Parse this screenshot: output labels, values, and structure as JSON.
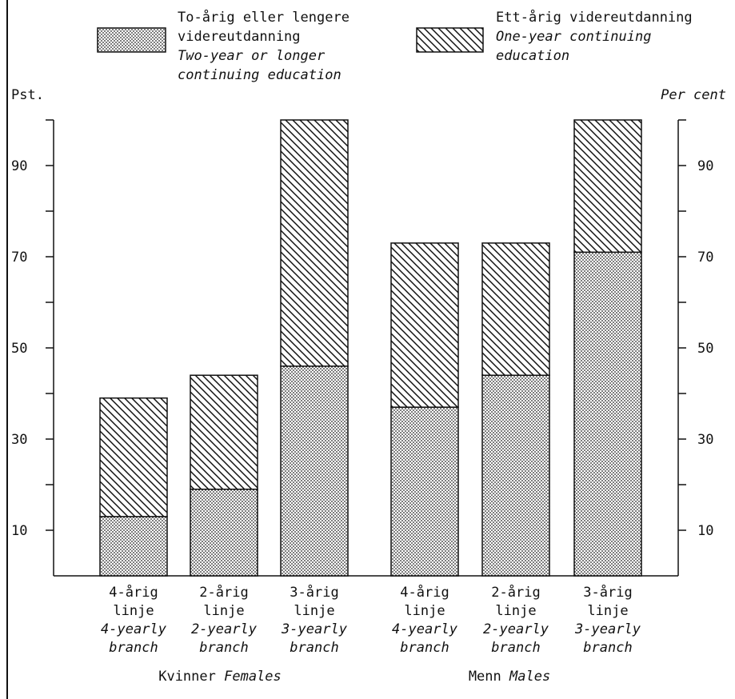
{
  "chart_data": {
    "type": "bar",
    "stacked": true,
    "left_unit_label": "Pst.",
    "right_unit_label": "Per cent",
    "ylim": [
      0,
      100
    ],
    "y_ticks_major": [
      10,
      30,
      50,
      70,
      90
    ],
    "y_ticks_minor": [
      20,
      40,
      60,
      80,
      100
    ],
    "grid": false,
    "legend_position": "top",
    "legend": [
      {
        "series": 0,
        "lines": [
          "To-årig eller lengere",
          "videreutdanning"
        ],
        "italic_lines": [
          "Two-year or longer",
          "continuing education"
        ]
      },
      {
        "series": 1,
        "lines": [
          "Ett-årig videreutdanning"
        ],
        "italic_lines": [
          "One-year continuing",
          "education"
        ]
      }
    ],
    "groups": [
      {
        "label": "Kvinner",
        "label_en": "Females",
        "category_indices": [
          0,
          1,
          2
        ]
      },
      {
        "label": "Menn",
        "label_en": "Males",
        "category_indices": [
          3,
          4,
          5
        ]
      }
    ],
    "categories": [
      {
        "lines": [
          "4-årig",
          "linje"
        ],
        "italic_lines": [
          "4-yearly",
          "branch"
        ]
      },
      {
        "lines": [
          "2-årig",
          "linje"
        ],
        "italic_lines": [
          "2-yearly",
          "branch"
        ]
      },
      {
        "lines": [
          "3-årig",
          "linje"
        ],
        "italic_lines": [
          "3-yearly",
          "branch"
        ]
      },
      {
        "lines": [
          "4-årig",
          "linje"
        ],
        "italic_lines": [
          "4-yearly",
          "branch"
        ]
      },
      {
        "lines": [
          "2-årig",
          "linje"
        ],
        "italic_lines": [
          "2-yearly",
          "branch"
        ]
      },
      {
        "lines": [
          "3-årig",
          "linje"
        ],
        "italic_lines": [
          "3-yearly",
          "branch"
        ]
      }
    ],
    "series": [
      {
        "pattern": "dots",
        "values": [
          13,
          19,
          46,
          37,
          44,
          71
        ]
      },
      {
        "pattern": "hatch",
        "values": [
          26,
          25,
          54,
          36,
          29,
          29
        ]
      }
    ]
  }
}
